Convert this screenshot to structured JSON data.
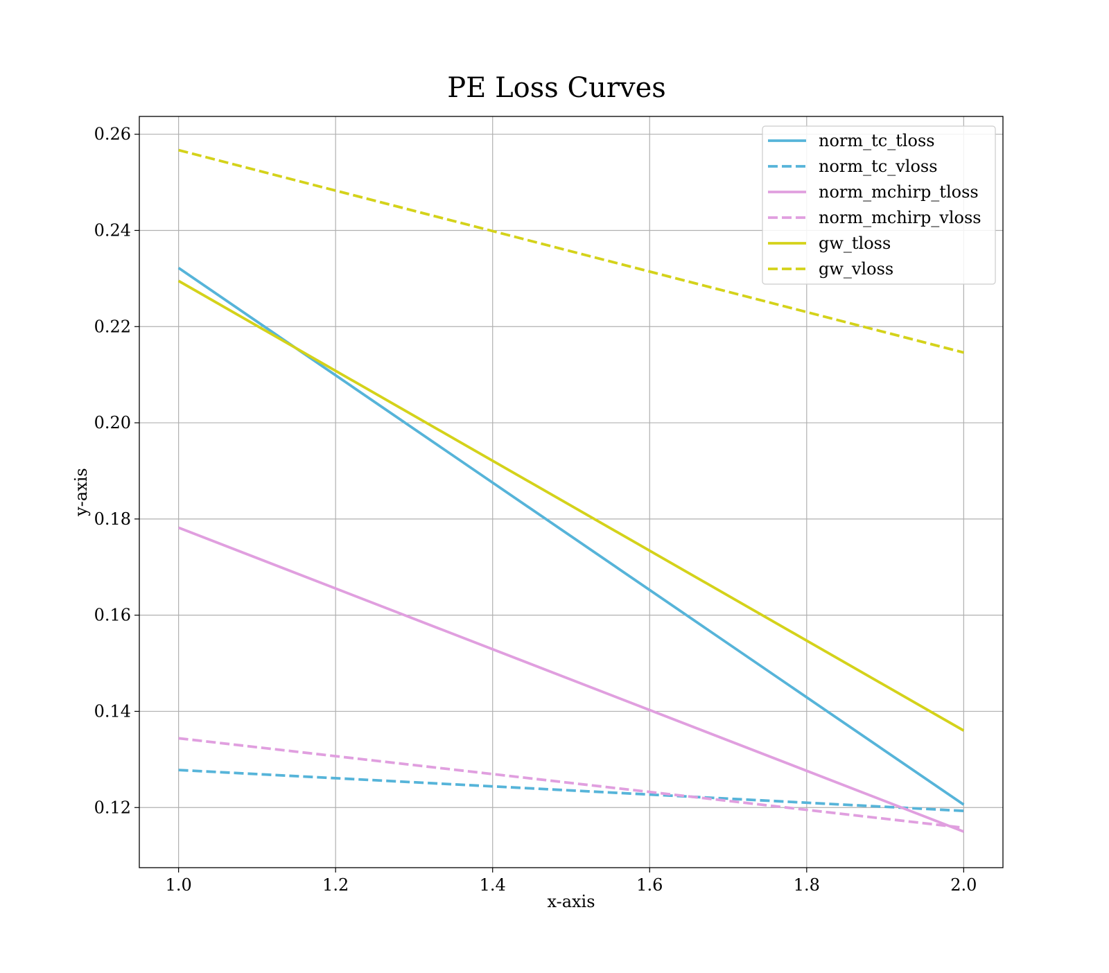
{
  "chart_data": {
    "type": "line",
    "title": "PE Loss Curves",
    "xlabel": "x-axis",
    "ylabel": "y-axis",
    "xlim": [
      0.95,
      2.05
    ],
    "ylim": [
      0.1075,
      0.2637
    ],
    "xticks": [
      1.0,
      1.2,
      1.4,
      1.6,
      1.8,
      2.0
    ],
    "xtick_labels": [
      "1.0",
      "1.2",
      "1.4",
      "1.6",
      "1.8",
      "2.0"
    ],
    "yticks": [
      0.12,
      0.14,
      0.16,
      0.18,
      0.2,
      0.22,
      0.24,
      0.26
    ],
    "ytick_labels": [
      "0.12",
      "0.14",
      "0.16",
      "0.18",
      "0.20",
      "0.22",
      "0.24",
      "0.26"
    ],
    "grid": true,
    "legend_position": "top-right",
    "series": [
      {
        "name": "norm_tc_tloss",
        "x": [
          1.0,
          2.0
        ],
        "y": [
          0.2322,
          0.1206
        ],
        "color": "#56b4d9",
        "dashed": false
      },
      {
        "name": "norm_tc_vloss",
        "x": [
          1.0,
          2.0
        ],
        "y": [
          0.1278,
          0.1193
        ],
        "color": "#56b4d9",
        "dashed": true
      },
      {
        "name": "norm_mchirp_tloss",
        "x": [
          1.0,
          2.0
        ],
        "y": [
          0.1782,
          0.115
        ],
        "color": "#e09fdf",
        "dashed": false
      },
      {
        "name": "norm_mchirp_vloss",
        "x": [
          1.0,
          2.0
        ],
        "y": [
          0.1344,
          0.1158
        ],
        "color": "#e09fdf",
        "dashed": true
      },
      {
        "name": "gw_tloss",
        "x": [
          1.0,
          2.0
        ],
        "y": [
          0.2295,
          0.136
        ],
        "color": "#d4d21a",
        "dashed": false
      },
      {
        "name": "gw_vloss",
        "x": [
          1.0,
          2.0
        ],
        "y": [
          0.2567,
          0.2146
        ],
        "color": "#d4d21a",
        "dashed": true
      }
    ]
  }
}
